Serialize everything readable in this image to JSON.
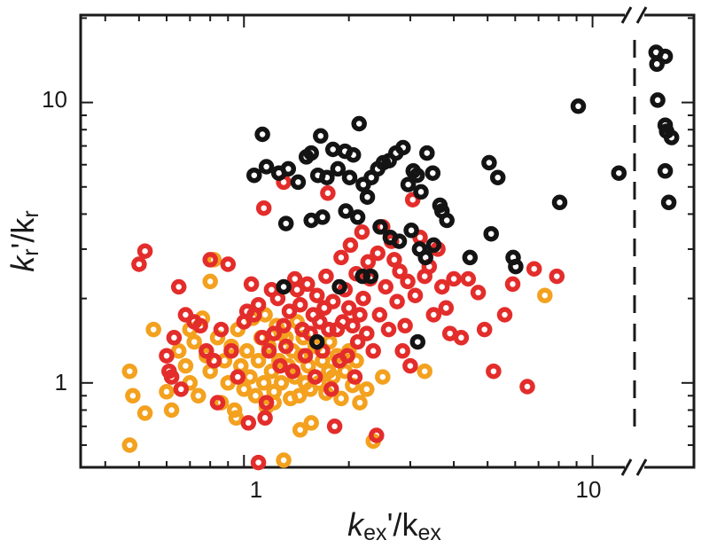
{
  "chart_data": {
    "type": "scatter",
    "title": "",
    "xlabel": {
      "main": "k",
      "sub": "ex",
      "tail": "'/k",
      "sub2": "ex"
    },
    "ylabel": {
      "main": "k",
      "sub": "r",
      "tail": "'/k",
      "sub2": "r"
    },
    "x_scale": "log",
    "y_scale": "log",
    "xlim": [
      0.34,
      13.2
    ],
    "ylim": [
      0.5,
      20.5
    ],
    "x_break": {
      "at": 13.2,
      "right_panel_xlim": [
        13.2,
        18.5
      ]
    },
    "x_ticks": [
      {
        "value": 1,
        "label": "1"
      },
      {
        "value": 10,
        "label": "10"
      }
    ],
    "y_ticks": [
      {
        "value": 1,
        "label": "1"
      },
      {
        "value": 10,
        "label": "10"
      }
    ],
    "grid": false,
    "legend": "none",
    "marker": "ring",
    "series": [
      {
        "color": "#141414",
        "points": [
          [
            1.07,
            5.5
          ],
          [
            1.13,
            7.7
          ],
          [
            1.16,
            5.9
          ],
          [
            1.26,
            5.6
          ],
          [
            1.34,
            5.8
          ],
          [
            1.43,
            5.2
          ],
          [
            1.51,
            6.4
          ],
          [
            1.56,
            6.6
          ],
          [
            1.63,
            5.5
          ],
          [
            1.66,
            7.6
          ],
          [
            1.73,
            5.4
          ],
          [
            1.8,
            6.8
          ],
          [
            1.86,
            5.8
          ],
          [
            1.95,
            6.7
          ],
          [
            2.01,
            5.4
          ],
          [
            2.06,
            6.5
          ],
          [
            2.14,
            8.4
          ],
          [
            2.2,
            5.1
          ],
          [
            2.26,
            4.6
          ],
          [
            2.32,
            5.4
          ],
          [
            2.42,
            5.8
          ],
          [
            2.51,
            6.1
          ],
          [
            2.61,
            6.2
          ],
          [
            2.73,
            6.6
          ],
          [
            2.86,
            6.9
          ],
          [
            2.96,
            5.1
          ],
          [
            3.06,
            5.7
          ],
          [
            3.14,
            5.5
          ],
          [
            3.22,
            4.8
          ],
          [
            3.35,
            6.6
          ],
          [
            3.48,
            5.6
          ],
          [
            3.65,
            4.3
          ],
          [
            1.32,
            3.7
          ],
          [
            1.56,
            3.8
          ],
          [
            1.68,
            3.9
          ],
          [
            1.96,
            4.1
          ],
          [
            2.12,
            3.9
          ],
          [
            2.46,
            3.6
          ],
          [
            2.63,
            3.3
          ],
          [
            2.79,
            3.2
          ],
          [
            3.02,
            3.5
          ],
          [
            3.19,
            3.0
          ],
          [
            3.32,
            2.8
          ],
          [
            3.5,
            3.1
          ],
          [
            3.7,
            4.1
          ],
          [
            3.82,
            3.8
          ],
          [
            4.45,
            2.8
          ],
          [
            5.05,
            6.1
          ],
          [
            5.35,
            5.4
          ],
          [
            5.12,
            3.4
          ],
          [
            5.92,
            2.8
          ],
          [
            6.02,
            2.6
          ],
          [
            8.05,
            4.4
          ],
          [
            9.1,
            9.7
          ],
          [
            2.19,
            2.4
          ],
          [
            2.31,
            2.4
          ],
          [
            1.3,
            2.2
          ],
          [
            1.88,
            2.2
          ],
          [
            1.62,
            1.4
          ],
          [
            3.15,
            1.4
          ]
        ]
      },
      {
        "color": "#141414",
        "panel": "right",
        "points": [
          [
            11.9,
            5.6
          ],
          [
            14.0,
            15.1
          ],
          [
            14.1,
            13.7
          ],
          [
            14.2,
            10.2
          ],
          [
            15.2,
            14.6
          ],
          [
            15.2,
            8.3
          ],
          [
            15.4,
            7.9
          ],
          [
            15.2,
            5.7
          ],
          [
            15.7,
            4.4
          ],
          [
            16.1,
            7.5
          ]
        ]
      },
      {
        "color": "#e32d2b",
        "points": [
          [
            0.5,
            2.65
          ],
          [
            0.52,
            2.95
          ],
          [
            0.6,
            1.25
          ],
          [
            0.61,
            1.1
          ],
          [
            0.62,
            1.05
          ],
          [
            0.63,
            1.45
          ],
          [
            0.65,
            2.2
          ],
          [
            0.66,
            0.95
          ],
          [
            0.68,
            1.75
          ],
          [
            0.72,
            1.65
          ],
          [
            0.75,
            1.6
          ],
          [
            0.78,
            1.3
          ],
          [
            0.8,
            2.75
          ],
          [
            0.82,
            1.2
          ],
          [
            0.84,
            0.85
          ],
          [
            0.86,
            1.55
          ],
          [
            0.9,
            2.65
          ],
          [
            0.92,
            1.3
          ],
          [
            0.96,
            1.05
          ],
          [
            1.0,
            1.65
          ],
          [
            1.02,
            1.8
          ],
          [
            1.03,
            0.72
          ],
          [
            1.05,
            2.25
          ],
          [
            1.07,
            1.75
          ],
          [
            1.1,
            1.9
          ],
          [
            1.13,
            1.45
          ],
          [
            1.15,
            0.75
          ],
          [
            1.16,
            0.85
          ],
          [
            1.18,
            1.3
          ],
          [
            1.2,
            2.15
          ],
          [
            1.22,
            1.5
          ],
          [
            1.25,
            2.0
          ],
          [
            1.27,
            1.15
          ],
          [
            1.3,
            1.6
          ],
          [
            1.32,
            1.35
          ],
          [
            1.35,
            1.8
          ],
          [
            1.38,
            1.1
          ],
          [
            1.4,
            2.35
          ],
          [
            1.42,
            2.15
          ],
          [
            1.45,
            1.9
          ],
          [
            1.47,
            1.55
          ],
          [
            1.5,
            1.25
          ],
          [
            1.52,
            2.25
          ],
          [
            1.55,
            1.5
          ],
          [
            1.58,
            1.75
          ],
          [
            1.6,
            1.05
          ],
          [
            1.62,
            2.05
          ],
          [
            1.65,
            1.65
          ],
          [
            1.68,
            1.3
          ],
          [
            1.7,
            1.85
          ],
          [
            1.72,
            2.4
          ],
          [
            1.75,
            1.55
          ],
          [
            1.78,
            0.95
          ],
          [
            1.8,
            1.95
          ],
          [
            1.82,
            0.7
          ],
          [
            1.85,
            1.55
          ],
          [
            1.88,
            1.2
          ],
          [
            1.9,
            2.8
          ],
          [
            1.92,
            1.65
          ],
          [
            1.95,
            2.15
          ],
          [
            1.98,
            1.25
          ],
          [
            2.0,
            1.85
          ],
          [
            2.02,
            3.1
          ],
          [
            2.05,
            1.6
          ],
          [
            2.08,
            1.05
          ],
          [
            2.1,
            2.45
          ],
          [
            2.12,
            1.4
          ],
          [
            2.15,
            1.75
          ],
          [
            2.18,
            3.45
          ],
          [
            2.2,
            2.0
          ],
          [
            2.25,
            1.5
          ],
          [
            2.3,
            2.35
          ],
          [
            2.35,
            1.3
          ],
          [
            2.4,
            0.65
          ],
          [
            2.42,
            2.9
          ],
          [
            2.45,
            1.75
          ],
          [
            2.5,
            3.6
          ],
          [
            2.55,
            2.2
          ],
          [
            2.6,
            1.55
          ],
          [
            2.65,
            3.2
          ],
          [
            2.7,
            2.75
          ],
          [
            2.75,
            1.95
          ],
          [
            2.8,
            2.5
          ],
          [
            2.85,
            1.3
          ],
          [
            2.9,
            1.6
          ],
          [
            2.95,
            2.3
          ],
          [
            3.0,
            1.15
          ],
          [
            3.05,
            4.5
          ],
          [
            3.1,
            2.05
          ],
          [
            3.2,
            3.3
          ],
          [
            3.3,
            2.4
          ],
          [
            3.4,
            2.6
          ],
          [
            3.5,
            1.75
          ],
          [
            3.6,
            3.0
          ],
          [
            3.7,
            2.2
          ],
          [
            3.8,
            1.85
          ],
          [
            3.9,
            1.5
          ],
          [
            4.0,
            2.35
          ],
          [
            4.2,
            1.45
          ],
          [
            4.4,
            2.35
          ],
          [
            4.7,
            2.1
          ],
          [
            4.9,
            1.55
          ],
          [
            5.2,
            1.1
          ],
          [
            5.6,
            1.75
          ],
          [
            5.9,
            2.25
          ],
          [
            6.5,
            0.97
          ],
          [
            6.8,
            2.55
          ],
          [
            7.9,
            2.4
          ],
          [
            1.1,
            0.52
          ],
          [
            1.3,
            5.2
          ],
          [
            1.14,
            4.2
          ],
          [
            1.74,
            4.75
          ],
          [
            2.27,
            2.7
          ]
        ]
      },
      {
        "color": "#f3a11e",
        "points": [
          [
            0.47,
            0.6
          ],
          [
            0.47,
            1.1
          ],
          [
            0.48,
            0.9
          ],
          [
            0.52,
            0.78
          ],
          [
            0.55,
            1.55
          ],
          [
            0.6,
            0.93
          ],
          [
            0.62,
            0.8
          ],
          [
            0.65,
            1.3
          ],
          [
            0.68,
            1.15
          ],
          [
            0.7,
            1.0
          ],
          [
            0.72,
            1.4
          ],
          [
            0.74,
            0.9
          ],
          [
            0.76,
            1.7
          ],
          [
            0.78,
            1.25
          ],
          [
            0.8,
            1.1
          ],
          [
            0.82,
            2.75
          ],
          [
            0.84,
            1.45
          ],
          [
            0.86,
            0.85
          ],
          [
            0.88,
            1.2
          ],
          [
            0.9,
            1.0
          ],
          [
            0.92,
            1.35
          ],
          [
            0.94,
            0.8
          ],
          [
            0.96,
            1.55
          ],
          [
            0.98,
            1.15
          ],
          [
            1.0,
            0.95
          ],
          [
            1.02,
            1.3
          ],
          [
            1.04,
            1.05
          ],
          [
            1.06,
            1.7
          ],
          [
            1.08,
            0.9
          ],
          [
            1.1,
            1.2
          ],
          [
            1.12,
            1.45
          ],
          [
            1.14,
            1.0
          ],
          [
            1.16,
            0.82
          ],
          [
            1.18,
            1.35
          ],
          [
            1.2,
            1.1
          ],
          [
            1.22,
            0.93
          ],
          [
            1.24,
            1.6
          ],
          [
            1.26,
            1.2
          ],
          [
            1.28,
            1.0
          ],
          [
            1.3,
            0.53
          ],
          [
            1.32,
            1.45
          ],
          [
            1.34,
            1.15
          ],
          [
            1.36,
            0.88
          ],
          [
            1.38,
            1.3
          ],
          [
            1.4,
            1.05
          ],
          [
            1.42,
            1.65
          ],
          [
            1.44,
            0.9
          ],
          [
            1.46,
            1.25
          ],
          [
            1.48,
            1.45
          ],
          [
            1.5,
            1.0
          ],
          [
            1.53,
            1.15
          ],
          [
            1.56,
            0.72
          ],
          [
            1.6,
            1.35
          ],
          [
            1.64,
            1.0
          ],
          [
            1.68,
            1.2
          ],
          [
            1.72,
            0.92
          ],
          [
            1.76,
            1.4
          ],
          [
            1.8,
            1.05
          ],
          [
            1.85,
            1.25
          ],
          [
            1.9,
            0.88
          ],
          [
            1.95,
            1.1
          ],
          [
            2.0,
            1.3
          ],
          [
            2.05,
            0.98
          ],
          [
            2.1,
            1.2
          ],
          [
            2.15,
            0.85
          ],
          [
            2.25,
            0.95
          ],
          [
            2.35,
            0.62
          ],
          [
            2.5,
            1.05
          ],
          [
            3.3,
            1.1
          ],
          [
            7.3,
            2.05
          ],
          [
            0.7,
            1.55
          ],
          [
            0.8,
            2.3
          ],
          [
            0.95,
            0.75
          ],
          [
            1.15,
            1.75
          ],
          [
            1.22,
            0.85
          ],
          [
            1.28,
            1.5
          ],
          [
            1.38,
            1.1
          ],
          [
            1.45,
            0.68
          ],
          [
            1.55,
            0.95
          ],
          [
            1.75,
            1.1
          ]
        ]
      }
    ]
  }
}
